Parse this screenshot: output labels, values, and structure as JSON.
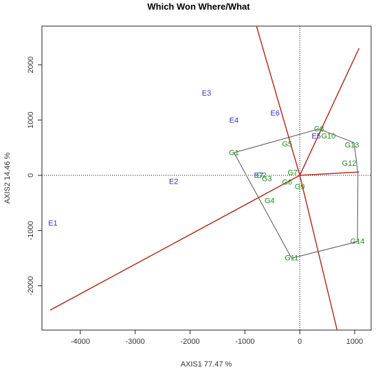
{
  "chart_data": {
    "type": "scatter",
    "title": "Which Won Where/What",
    "xlabel": "AXIS1 77.47 %",
    "ylabel": "AXIS2 14.46 %",
    "xlim": [
      -4700,
      1300
    ],
    "ylim": [
      -2800,
      2700
    ],
    "xticks": [
      -4000,
      -3000,
      -2000,
      -1000,
      0,
      1000
    ],
    "yticks": [
      -2000,
      -1000,
      0,
      1000,
      2000
    ],
    "colors": {
      "environments": "#3333cc",
      "genotypes": "#228b22",
      "hull": "#555555",
      "sector_lines": "#b03020",
      "reference_lines": "#000000"
    },
    "environments": [
      {
        "label": "E1",
        "x": -4500,
        "y": -870
      },
      {
        "label": "E2",
        "x": -2300,
        "y": -120
      },
      {
        "label": "E3",
        "x": -1700,
        "y": 1480
      },
      {
        "label": "E4",
        "x": -1200,
        "y": 990
      },
      {
        "label": "E6",
        "x": -450,
        "y": 1120
      },
      {
        "label": "E7",
        "x": -750,
        "y": -5
      },
      {
        "label": "E5",
        "x": 300,
        "y": 700
      }
    ],
    "genotypes": [
      {
        "label": "G1",
        "x": -1200,
        "y": 400
      },
      {
        "label": "G2",
        "x": -700,
        "y": -10
      },
      {
        "label": "G3",
        "x": -600,
        "y": -70
      },
      {
        "label": "G4",
        "x": -550,
        "y": -470
      },
      {
        "label": "G5",
        "x": -230,
        "y": 560
      },
      {
        "label": "G6",
        "x": -230,
        "y": -130
      },
      {
        "label": "G7",
        "x": -130,
        "y": 40
      },
      {
        "label": "G9",
        "x": 0,
        "y": -210
      },
      {
        "label": "G8",
        "x": 350,
        "y": 830
      },
      {
        "label": "G10",
        "x": 520,
        "y": 700
      },
      {
        "label": "G13",
        "x": 950,
        "y": 540
      },
      {
        "label": "G12",
        "x": 900,
        "y": 210
      },
      {
        "label": "G14",
        "x": 1050,
        "y": -1200
      },
      {
        "label": "G11",
        "x": -150,
        "y": -1500
      }
    ],
    "hull": [
      {
        "x": -1200,
        "y": 410
      },
      {
        "x": 350,
        "y": 840
      },
      {
        "x": 990,
        "y": 590
      },
      {
        "x": 1060,
        "y": 30
      },
      {
        "x": 1050,
        "y": -1200
      },
      {
        "x": -150,
        "y": -1500
      }
    ],
    "sector_rays": [
      {
        "x": -4550,
        "y": -2440
      },
      {
        "x": 1080,
        "y": 2300
      },
      {
        "x": 1080,
        "y": 60
      },
      {
        "x": -790,
        "y": 2700
      },
      {
        "x": 680,
        "y": -2800
      }
    ],
    "origin": {
      "x": 0,
      "y": 0
    }
  }
}
